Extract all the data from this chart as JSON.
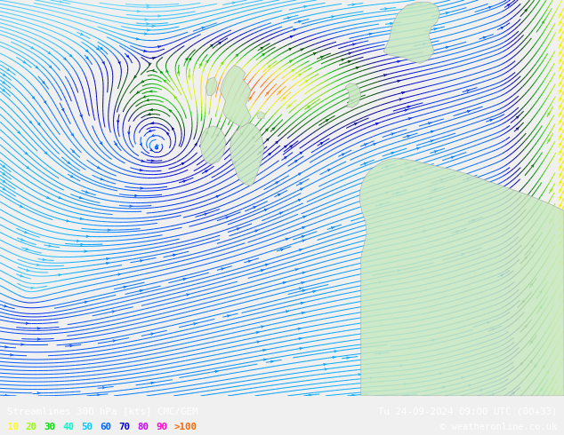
{
  "title_left": "Streamlines 300 hPa [kts] CMC/GEM",
  "title_right": "Tu 24-09-2024 09:00 UTC (00+33)",
  "copyright": "© weatheronline.co.uk",
  "legend_values": [
    "10",
    "20",
    "30",
    "40",
    "50",
    "60",
    "70",
    "80",
    "90",
    ">100"
  ],
  "legend_text_colors": [
    "#ffff00",
    "#99ff00",
    "#00dd00",
    "#00ffcc",
    "#00ccff",
    "#0066ff",
    "#0000cc",
    "#cc00ff",
    "#ff00cc",
    "#ff6600"
  ],
  "bg_color": "#f0f0f0",
  "land_color": "#c8e8c0",
  "coast_color": "#aaaaaa",
  "bottom_bg": "#000000",
  "figsize": [
    6.34,
    4.9
  ],
  "dpi": 100,
  "speed_colors": [
    [
      0.0,
      "#e0f0ff"
    ],
    [
      0.08,
      "#aaddff"
    ],
    [
      0.15,
      "#55ccff"
    ],
    [
      0.22,
      "#00aaff"
    ],
    [
      0.3,
      "#0066ff"
    ],
    [
      0.38,
      "#0000ee"
    ],
    [
      0.45,
      "#0000aa"
    ],
    [
      0.52,
      "#003300"
    ],
    [
      0.58,
      "#006600"
    ],
    [
      0.64,
      "#00aa00"
    ],
    [
      0.7,
      "#66cc00"
    ],
    [
      0.76,
      "#aadd00"
    ],
    [
      0.82,
      "#ddee00"
    ],
    [
      0.88,
      "#ffff00"
    ],
    [
      0.94,
      "#ffaa00"
    ],
    [
      1.0,
      "#ff4400"
    ]
  ],
  "speed_vmax": 120
}
